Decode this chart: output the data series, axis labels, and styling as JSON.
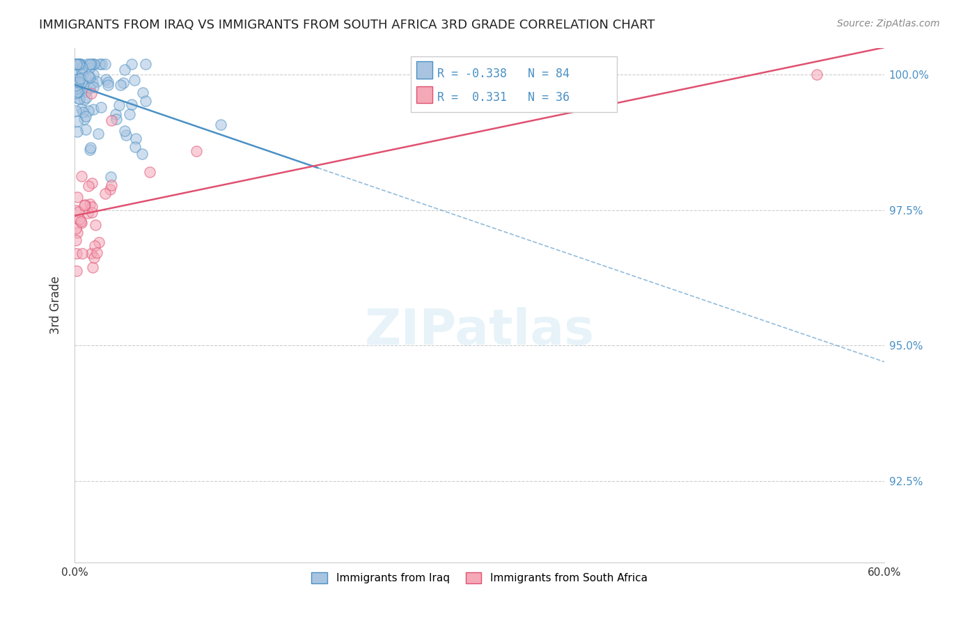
{
  "title": "IMMIGRANTS FROM IRAQ VS IMMIGRANTS FROM SOUTH AFRICA 3RD GRADE CORRELATION CHART",
  "source": "Source: ZipAtlas.com",
  "ylabel": "3rd Grade",
  "ytick_labels": [
    "100.0%",
    "97.5%",
    "95.0%",
    "92.5%"
  ],
  "ytick_values": [
    1.0,
    0.975,
    0.95,
    0.925
  ],
  "xlim": [
    0.0,
    0.6
  ],
  "ylim": [
    0.91,
    1.005
  ],
  "r_iraq": -0.338,
  "n_iraq": 84,
  "r_sa": 0.331,
  "n_sa": 36,
  "legend_iraq": "Immigrants from Iraq",
  "legend_sa": "Immigrants from South Africa",
  "color_iraq": "#a8c4e0",
  "color_sa": "#f4a8b8",
  "trendline_iraq_color": "#4a90c4",
  "trendline_sa_color": "#e05070",
  "background_color": "#ffffff"
}
